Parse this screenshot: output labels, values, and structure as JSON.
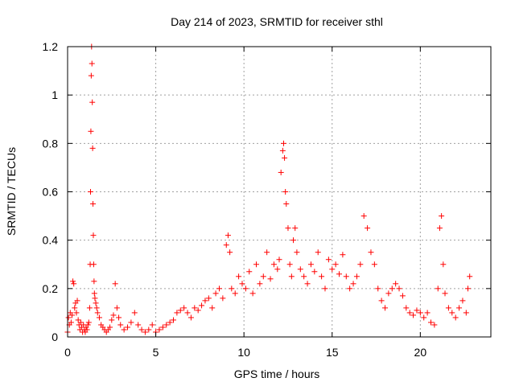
{
  "chart_data": {
    "type": "scatter",
    "title": "Day 214 of 2023, SRMTID for receiver sthl",
    "xlabel": "GPS time / hours",
    "ylabel": "SRMTID / TECUs",
    "xlim": [
      0,
      24
    ],
    "ylim": [
      0,
      1.2
    ],
    "xticks": [
      0,
      5,
      10,
      15,
      20
    ],
    "xtick_labels": [
      "0",
      "5",
      "10",
      "15",
      "20"
    ],
    "yticks": [
      0,
      0.2,
      0.4,
      0.6,
      0.8,
      1,
      1.2
    ],
    "ytick_labels": [
      "0",
      "0.2",
      "0.4",
      "0.6",
      "0.8",
      "1",
      "1.2"
    ],
    "grid": true,
    "marker": "+",
    "color": "#ff0000",
    "series": [
      {
        "name": "SRMTID",
        "points": [
          [
            0.0,
            0.02
          ],
          [
            0.05,
            0.08
          ],
          [
            0.1,
            0.05
          ],
          [
            0.15,
            0.1
          ],
          [
            0.2,
            0.06
          ],
          [
            0.25,
            0.09
          ],
          [
            0.3,
            0.23
          ],
          [
            0.35,
            0.22
          ],
          [
            0.4,
            0.12
          ],
          [
            0.45,
            0.14
          ],
          [
            0.5,
            0.1
          ],
          [
            0.55,
            0.15
          ],
          [
            0.6,
            0.07
          ],
          [
            0.65,
            0.05
          ],
          [
            0.7,
            0.03
          ],
          [
            0.75,
            0.06
          ],
          [
            0.8,
            0.04
          ],
          [
            0.85,
            0.02
          ],
          [
            0.9,
            0.05
          ],
          [
            0.95,
            0.03
          ],
          [
            1.0,
            0.02
          ],
          [
            1.05,
            0.04
          ],
          [
            1.1,
            0.03
          ],
          [
            1.15,
            0.05
          ],
          [
            1.2,
            0.06
          ],
          [
            1.25,
            0.12
          ],
          [
            1.28,
            0.3
          ],
          [
            1.3,
            0.6
          ],
          [
            1.32,
            0.85
          ],
          [
            1.34,
            1.08
          ],
          [
            1.36,
            1.2
          ],
          [
            1.38,
            1.13
          ],
          [
            1.4,
            0.97
          ],
          [
            1.42,
            0.78
          ],
          [
            1.44,
            0.55
          ],
          [
            1.46,
            0.42
          ],
          [
            1.48,
            0.3
          ],
          [
            1.5,
            0.23
          ],
          [
            1.52,
            0.18
          ],
          [
            1.55,
            0.16
          ],
          [
            1.6,
            0.14
          ],
          [
            1.65,
            0.12
          ],
          [
            1.7,
            0.1
          ],
          [
            1.8,
            0.08
          ],
          [
            1.9,
            0.05
          ],
          [
            2.0,
            0.04
          ],
          [
            2.1,
            0.03
          ],
          [
            2.2,
            0.02
          ],
          [
            2.3,
            0.03
          ],
          [
            2.4,
            0.04
          ],
          [
            2.5,
            0.07
          ],
          [
            2.6,
            0.09
          ],
          [
            2.7,
            0.22
          ],
          [
            2.8,
            0.12
          ],
          [
            2.9,
            0.08
          ],
          [
            3.0,
            0.05
          ],
          [
            3.2,
            0.03
          ],
          [
            3.4,
            0.04
          ],
          [
            3.6,
            0.06
          ],
          [
            3.8,
            0.1
          ],
          [
            4.0,
            0.05
          ],
          [
            4.2,
            0.03
          ],
          [
            4.4,
            0.02
          ],
          [
            4.6,
            0.03
          ],
          [
            4.8,
            0.05
          ],
          [
            5.0,
            0.02
          ],
          [
            5.2,
            0.03
          ],
          [
            5.4,
            0.04
          ],
          [
            5.6,
            0.05
          ],
          [
            5.8,
            0.06
          ],
          [
            6.0,
            0.07
          ],
          [
            6.2,
            0.1
          ],
          [
            6.4,
            0.11
          ],
          [
            6.6,
            0.12
          ],
          [
            6.8,
            0.1
          ],
          [
            7.0,
            0.08
          ],
          [
            7.2,
            0.12
          ],
          [
            7.4,
            0.11
          ],
          [
            7.6,
            0.13
          ],
          [
            7.8,
            0.15
          ],
          [
            8.0,
            0.16
          ],
          [
            8.2,
            0.12
          ],
          [
            8.4,
            0.18
          ],
          [
            8.6,
            0.2
          ],
          [
            8.8,
            0.16
          ],
          [
            9.0,
            0.38
          ],
          [
            9.1,
            0.42
          ],
          [
            9.2,
            0.35
          ],
          [
            9.3,
            0.2
          ],
          [
            9.5,
            0.18
          ],
          [
            9.7,
            0.25
          ],
          [
            9.9,
            0.22
          ],
          [
            10.1,
            0.2
          ],
          [
            10.3,
            0.27
          ],
          [
            10.5,
            0.18
          ],
          [
            10.7,
            0.3
          ],
          [
            10.9,
            0.22
          ],
          [
            11.1,
            0.25
          ],
          [
            11.3,
            0.35
          ],
          [
            11.5,
            0.24
          ],
          [
            11.7,
            0.3
          ],
          [
            11.9,
            0.28
          ],
          [
            12.0,
            0.32
          ],
          [
            12.1,
            0.68
          ],
          [
            12.2,
            0.77
          ],
          [
            12.25,
            0.8
          ],
          [
            12.3,
            0.74
          ],
          [
            12.35,
            0.6
          ],
          [
            12.4,
            0.55
          ],
          [
            12.5,
            0.45
          ],
          [
            12.6,
            0.3
          ],
          [
            12.7,
            0.25
          ],
          [
            12.8,
            0.4
          ],
          [
            12.9,
            0.45
          ],
          [
            13.0,
            0.35
          ],
          [
            13.2,
            0.28
          ],
          [
            13.4,
            0.25
          ],
          [
            13.6,
            0.22
          ],
          [
            13.8,
            0.3
          ],
          [
            14.0,
            0.27
          ],
          [
            14.2,
            0.35
          ],
          [
            14.4,
            0.25
          ],
          [
            14.6,
            0.2
          ],
          [
            14.8,
            0.32
          ],
          [
            15.0,
            0.28
          ],
          [
            15.2,
            0.3
          ],
          [
            15.4,
            0.26
          ],
          [
            15.6,
            0.34
          ],
          [
            15.8,
            0.25
          ],
          [
            16.0,
            0.2
          ],
          [
            16.2,
            0.22
          ],
          [
            16.4,
            0.25
          ],
          [
            16.6,
            0.3
          ],
          [
            16.8,
            0.5
          ],
          [
            17.0,
            0.45
          ],
          [
            17.2,
            0.35
          ],
          [
            17.4,
            0.3
          ],
          [
            17.6,
            0.2
          ],
          [
            17.8,
            0.15
          ],
          [
            18.0,
            0.12
          ],
          [
            18.2,
            0.18
          ],
          [
            18.4,
            0.2
          ],
          [
            18.6,
            0.22
          ],
          [
            18.8,
            0.2
          ],
          [
            19.0,
            0.17
          ],
          [
            19.2,
            0.12
          ],
          [
            19.4,
            0.1
          ],
          [
            19.6,
            0.09
          ],
          [
            19.8,
            0.11
          ],
          [
            20.0,
            0.1
          ],
          [
            20.2,
            0.08
          ],
          [
            20.4,
            0.1
          ],
          [
            20.6,
            0.06
          ],
          [
            20.8,
            0.05
          ],
          [
            21.0,
            0.2
          ],
          [
            21.1,
            0.45
          ],
          [
            21.2,
            0.5
          ],
          [
            21.3,
            0.3
          ],
          [
            21.4,
            0.18
          ],
          [
            21.6,
            0.12
          ],
          [
            21.8,
            0.1
          ],
          [
            22.0,
            0.08
          ],
          [
            22.2,
            0.12
          ],
          [
            22.4,
            0.15
          ],
          [
            22.6,
            0.1
          ],
          [
            22.7,
            0.2
          ],
          [
            22.8,
            0.25
          ]
        ]
      }
    ]
  }
}
